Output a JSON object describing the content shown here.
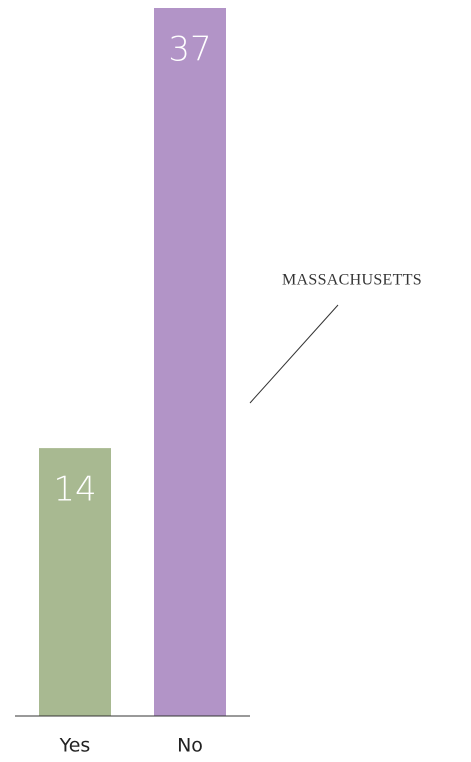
{
  "chart_data": {
    "type": "bar",
    "categories": [
      "Yes",
      "No"
    ],
    "values": [
      14,
      37
    ],
    "colors": [
      "#a8b991",
      "#b294c7"
    ],
    "annotation": "MASSACHUSETTS"
  }
}
